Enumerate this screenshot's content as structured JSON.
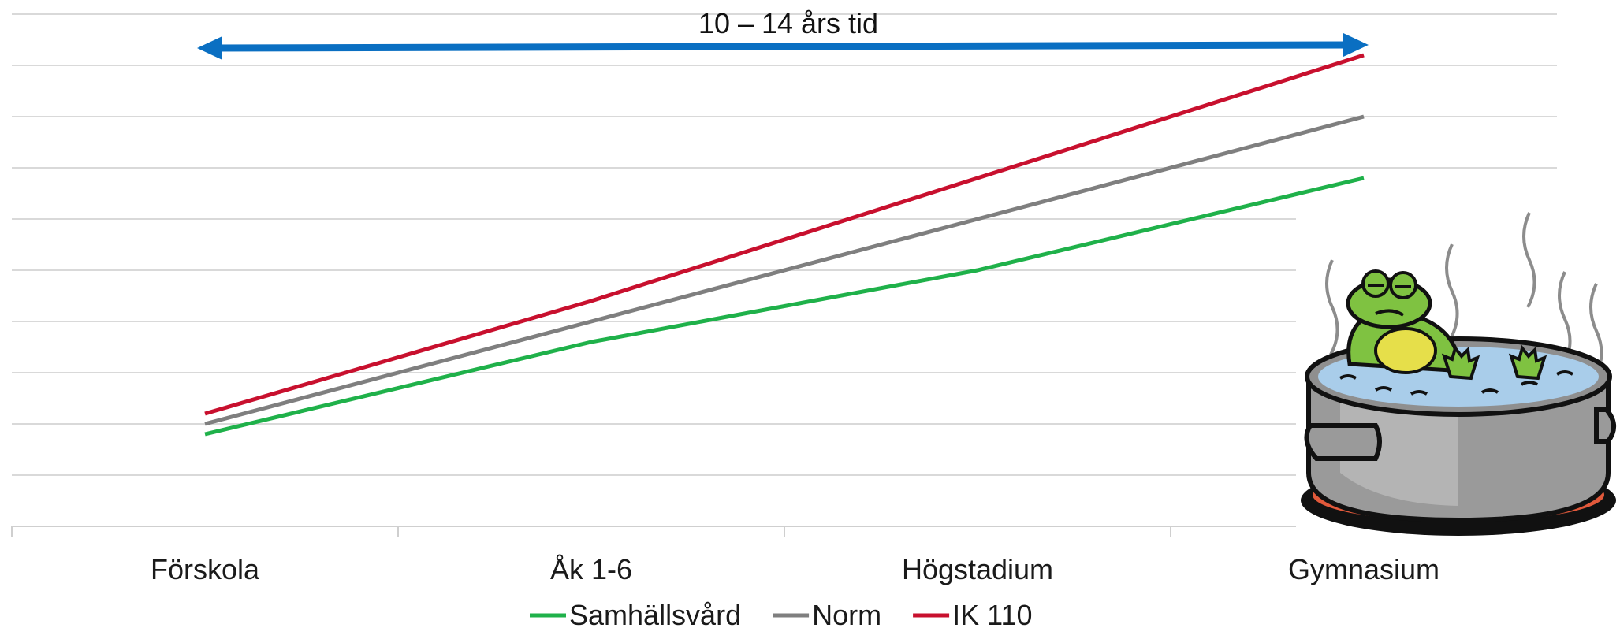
{
  "chart_data": {
    "type": "line",
    "categories": [
      "Förskola",
      "Åk 1-6",
      "Högstadium",
      "Gymnasium"
    ],
    "series": [
      {
        "name": "Samhällsvård",
        "color": "#1fb14a",
        "values": [
          1.8,
          3.6,
          5.0,
          6.8
        ]
      },
      {
        "name": "Norm",
        "color": "#7f7f7f",
        "values": [
          2.0,
          4.0,
          6.0,
          8.0
        ]
      },
      {
        "name": "IK 110",
        "color": "#c8102e",
        "values": [
          2.2,
          4.4,
          6.8,
          9.2
        ]
      }
    ],
    "ylim": [
      0,
      10
    ],
    "grid": true,
    "legend": "bottom",
    "annotation": {
      "text": "10 – 14 års tid",
      "color": "#0a6fc2"
    },
    "illustration": "frog-in-boiling-pot-icon"
  }
}
